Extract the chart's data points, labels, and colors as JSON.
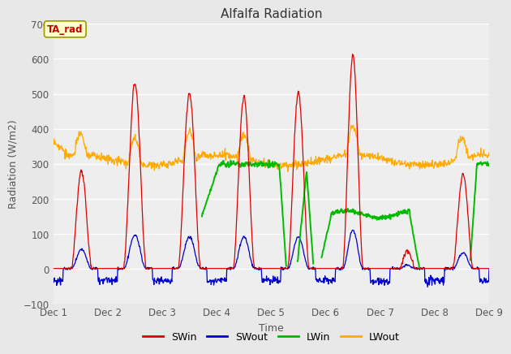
{
  "title": "Alfalfa Radiation",
  "xlabel": "Time",
  "ylabel": "Radiation (W/m2)",
  "ylim": [
    -100,
    700
  ],
  "yticks": [
    -100,
    0,
    100,
    200,
    300,
    400,
    500,
    600,
    700
  ],
  "xlim": [
    0,
    8
  ],
  "xtick_labels": [
    "Dec 1",
    "Dec 2",
    "Dec 3",
    "Dec 4",
    "Dec 5",
    "Dec 6",
    "Dec 7",
    "Dec 8",
    "Dec 9"
  ],
  "colors": {
    "SWin": "#dd0000",
    "SWout": "#0000cc",
    "LWin": "#00bb00",
    "LWout": "#ffaa00"
  },
  "bg_color": "#e8e8e8",
  "plot_bg_color": "#eeeeee",
  "legend_label": "TA_rad",
  "legend_label_color": "#cc0000",
  "legend_box_color": "#ffffcc",
  "legend_box_edge": "#999900"
}
